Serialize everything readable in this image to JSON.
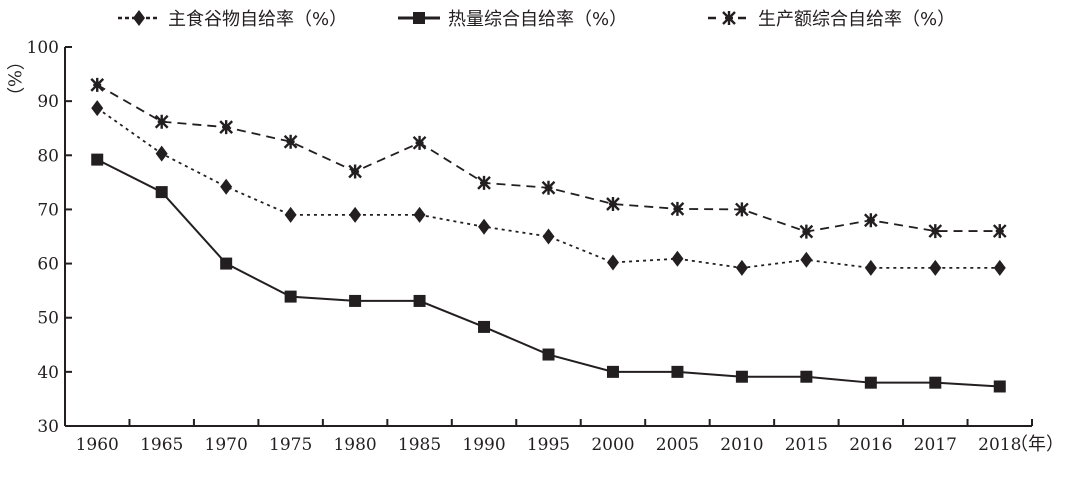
{
  "chart_data": {
    "type": "line",
    "title": "",
    "xlabel": "（年）",
    "ylabel": "（%）",
    "ylim": [
      30,
      100
    ],
    "yticks": [
      30,
      40,
      50,
      60,
      70,
      80,
      90,
      100
    ],
    "categories": [
      "1960",
      "1965",
      "1970",
      "1975",
      "1980",
      "1985",
      "1990",
      "1995",
      "2000",
      "2005",
      "2010",
      "2015",
      "2016",
      "2017",
      "2018"
    ],
    "legend_position": "top",
    "grid": false,
    "series": [
      {
        "name": "主食谷物自给率（%）",
        "marker": "diamond",
        "line": "dotted",
        "color": "#231f20",
        "values": [
          88.7,
          80.3,
          74.2,
          69,
          69,
          69,
          66.8,
          65,
          60.2,
          60.9,
          59.2,
          60.7,
          59.2,
          59.2,
          59.2
        ]
      },
      {
        "name": "热量综合自给率（%）",
        "marker": "square",
        "line": "solid",
        "color": "#231f20",
        "values": [
          79.2,
          73.2,
          60,
          53.9,
          53.1,
          53.1,
          48.3,
          43.2,
          40,
          40,
          39.1,
          39.1,
          38,
          38,
          37.3
        ]
      },
      {
        "name": "生产额综合自给率（%）",
        "marker": "asterisk",
        "line": "dashed",
        "color": "#231f20",
        "values": [
          93,
          86.2,
          85.2,
          82.5,
          77,
          82.3,
          74.9,
          74,
          71,
          70.1,
          70,
          65.9,
          68,
          66,
          66
        ]
      }
    ]
  }
}
